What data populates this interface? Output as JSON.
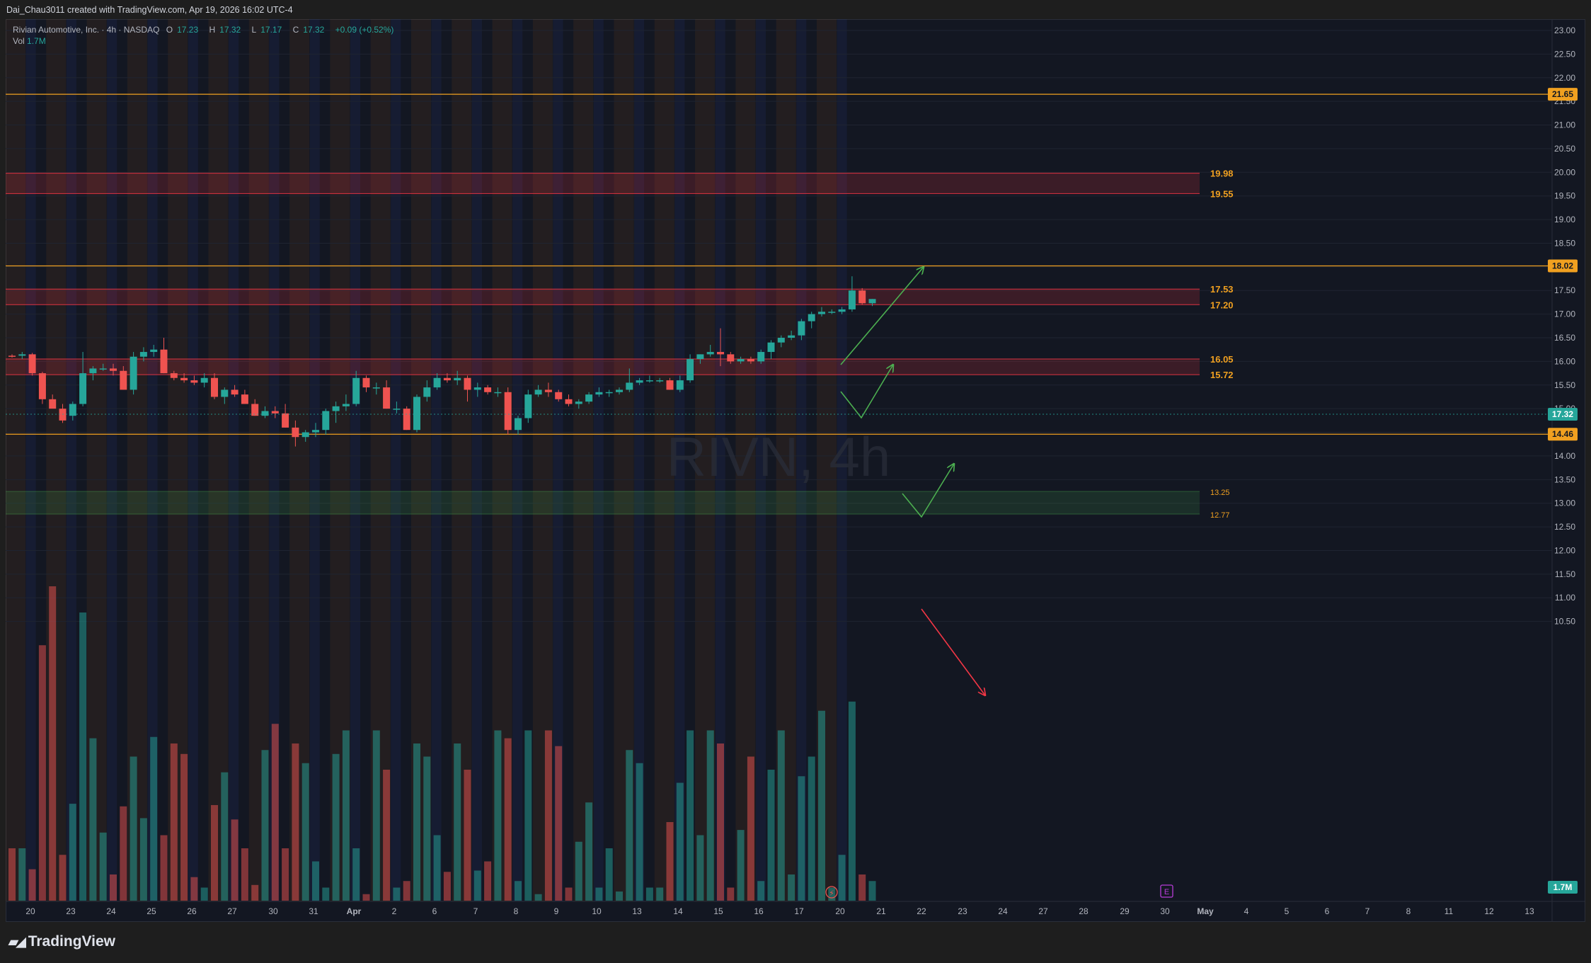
{
  "header": {
    "created_by": "Dai_Chau3011 created with TradingView.com, Apr 19, 2026 16:02 UTC-4"
  },
  "legend": {
    "symbol": "Rivian Automotive, Inc. · 4h · NASDAQ",
    "open_label": "O",
    "open": "17.23",
    "high_label": "H",
    "high": "17.32",
    "low_label": "L",
    "low": "17.17",
    "close_label": "C",
    "close": "17.32",
    "change": "+0.09 (+0.52%)",
    "vol_label": "Vol",
    "vol": "1.7M"
  },
  "watermark": "RIVN, 4h",
  "brand": {
    "name": "TradingView"
  },
  "colors": {
    "up": "#26a69a",
    "down": "#ef5350",
    "orange_line": "#f0a020",
    "red_zone": "#f23645",
    "green_zone": "#4caf50",
    "arrow_green": "#4caf50",
    "arrow_red": "#f23645"
  },
  "chart_data": {
    "type": "candlestick",
    "symbol": "RIVN",
    "interval": "4h",
    "y_axis": {
      "range": [
        10.2,
        23.2
      ],
      "ticks": [
        "23.00",
        "22.50",
        "22.00",
        "21.50",
        "21.00",
        "20.50",
        "20.00",
        "19.50",
        "19.00",
        "18.50",
        "18.00",
        "17.50",
        "17.00",
        "16.50",
        "16.00",
        "15.50",
        "15.00",
        "14.50",
        "14.00",
        "13.50",
        "13.00",
        "12.50",
        "12.00",
        "11.50",
        "11.00",
        "10.50"
      ]
    },
    "x_axis": {
      "labels": [
        "20",
        "23",
        "24",
        "25",
        "26",
        "27",
        "30",
        "31",
        "Apr",
        "2",
        "6",
        "7",
        "8",
        "9",
        "10",
        "13",
        "14",
        "15",
        "16",
        "17",
        "20",
        "21",
        "22",
        "23",
        "24",
        "27",
        "28",
        "29",
        "30",
        "May",
        "4",
        "5",
        "6",
        "7",
        "8",
        "11",
        "12",
        "13"
      ]
    },
    "candles": [
      [
        16.12,
        16.15,
        16.08,
        16.1
      ],
      [
        16.12,
        16.2,
        16.05,
        16.15
      ],
      [
        16.15,
        16.18,
        15.7,
        15.75
      ],
      [
        15.75,
        15.78,
        15.1,
        15.2
      ],
      [
        15.2,
        15.3,
        15.05,
        15.0
      ],
      [
        15.0,
        15.1,
        14.7,
        14.75
      ],
      [
        14.85,
        15.15,
        14.75,
        15.1
      ],
      [
        15.1,
        16.2,
        15.05,
        15.75
      ],
      [
        15.75,
        15.9,
        15.6,
        15.85
      ],
      [
        15.85,
        15.95,
        15.8,
        15.85
      ],
      [
        15.85,
        15.95,
        15.7,
        15.8
      ],
      [
        15.8,
        15.9,
        15.4,
        15.4
      ],
      [
        15.4,
        16.2,
        15.3,
        16.1
      ],
      [
        16.1,
        16.3,
        16.0,
        16.2
      ],
      [
        16.2,
        16.35,
        16.1,
        16.25
      ],
      [
        16.25,
        16.5,
        15.75,
        15.75
      ],
      [
        15.75,
        15.8,
        15.6,
        15.65
      ],
      [
        15.65,
        15.75,
        15.55,
        15.6
      ],
      [
        15.6,
        15.7,
        15.5,
        15.55
      ],
      [
        15.55,
        15.75,
        15.45,
        15.65
      ],
      [
        15.65,
        15.75,
        15.2,
        15.25
      ],
      [
        15.25,
        15.45,
        15.1,
        15.4
      ],
      [
        15.4,
        15.5,
        15.25,
        15.3
      ],
      [
        15.3,
        15.4,
        15.1,
        15.1
      ],
      [
        15.1,
        15.2,
        14.85,
        14.85
      ],
      [
        14.85,
        15.05,
        14.8,
        14.95
      ],
      [
        14.95,
        15.05,
        14.8,
        14.9
      ],
      [
        14.9,
        15.1,
        14.6,
        14.6
      ],
      [
        14.6,
        14.75,
        14.2,
        14.4
      ],
      [
        14.4,
        14.55,
        14.3,
        14.5
      ],
      [
        14.5,
        14.7,
        14.4,
        14.55
      ],
      [
        14.55,
        15.0,
        14.45,
        14.95
      ],
      [
        14.95,
        15.15,
        14.7,
        15.05
      ],
      [
        15.05,
        15.3,
        14.95,
        15.1
      ],
      [
        15.1,
        15.8,
        15.05,
        15.65
      ],
      [
        15.65,
        15.7,
        15.35,
        15.45
      ],
      [
        15.45,
        15.55,
        15.3,
        15.45
      ],
      [
        15.45,
        15.6,
        15.0,
        15.0
      ],
      [
        15.0,
        15.15,
        14.9,
        15.0
      ],
      [
        15.0,
        15.05,
        14.55,
        14.55
      ],
      [
        14.55,
        15.3,
        14.5,
        15.25
      ],
      [
        15.25,
        15.6,
        15.15,
        15.45
      ],
      [
        15.45,
        15.75,
        15.4,
        15.65
      ],
      [
        15.65,
        15.75,
        15.55,
        15.6
      ],
      [
        15.6,
        15.8,
        15.5,
        15.65
      ],
      [
        15.65,
        15.7,
        15.15,
        15.4
      ],
      [
        15.4,
        15.55,
        15.25,
        15.45
      ],
      [
        15.45,
        15.5,
        15.3,
        15.35
      ],
      [
        15.35,
        15.45,
        15.25,
        15.35
      ],
      [
        15.35,
        15.45,
        14.45,
        14.55
      ],
      [
        14.55,
        14.85,
        14.45,
        14.8
      ],
      [
        14.8,
        15.4,
        14.7,
        15.3
      ],
      [
        15.3,
        15.5,
        15.25,
        15.4
      ],
      [
        15.4,
        15.55,
        15.25,
        15.35
      ],
      [
        15.35,
        15.4,
        15.15,
        15.2
      ],
      [
        15.2,
        15.3,
        15.05,
        15.1
      ],
      [
        15.1,
        15.2,
        15.0,
        15.15
      ],
      [
        15.15,
        15.35,
        15.1,
        15.3
      ],
      [
        15.3,
        15.45,
        15.25,
        15.35
      ],
      [
        15.35,
        15.4,
        15.25,
        15.35
      ],
      [
        15.35,
        15.45,
        15.3,
        15.4
      ],
      [
        15.4,
        15.85,
        15.35,
        15.55
      ],
      [
        15.55,
        15.65,
        15.5,
        15.6
      ],
      [
        15.6,
        15.7,
        15.55,
        15.6
      ],
      [
        15.6,
        15.65,
        15.55,
        15.6
      ],
      [
        15.6,
        15.65,
        15.4,
        15.4
      ],
      [
        15.4,
        15.7,
        15.35,
        15.6
      ],
      [
        15.6,
        16.15,
        15.55,
        16.05
      ],
      [
        16.05,
        16.15,
        15.95,
        16.15
      ],
      [
        16.15,
        16.35,
        16.1,
        16.2
      ],
      [
        16.2,
        16.7,
        15.9,
        16.15
      ],
      [
        16.15,
        16.2,
        15.95,
        16.0
      ],
      [
        16.0,
        16.1,
        15.95,
        16.05
      ],
      [
        16.05,
        16.1,
        15.95,
        16.0
      ],
      [
        16.0,
        16.25,
        15.95,
        16.2
      ],
      [
        16.2,
        16.45,
        16.05,
        16.4
      ],
      [
        16.4,
        16.55,
        16.3,
        16.5
      ],
      [
        16.5,
        16.65,
        16.45,
        16.55
      ],
      [
        16.55,
        16.9,
        16.45,
        16.85
      ],
      [
        16.85,
        17.05,
        16.7,
        17.0
      ],
      [
        17.0,
        17.15,
        16.95,
        17.05
      ],
      [
        17.05,
        17.1,
        17.0,
        17.05
      ],
      [
        17.05,
        17.15,
        17.0,
        17.1
      ],
      [
        17.1,
        17.8,
        17.05,
        17.5
      ],
      [
        17.5,
        17.55,
        17.2,
        17.23
      ],
      [
        17.23,
        17.32,
        17.17,
        17.32
      ]
    ],
    "volume": [
      0.4,
      0.4,
      0.24,
      1.95,
      2.4,
      0.35,
      0.74,
      2.2,
      1.24,
      0.52,
      0.2,
      0.72,
      1.1,
      0.63,
      1.25,
      0.5,
      1.2,
      1.12,
      0.18,
      0.1,
      0.73,
      0.98,
      0.62,
      0.4,
      0.12,
      1.15,
      1.35,
      0.4,
      1.2,
      1.05,
      0.3,
      0.1,
      1.12,
      1.3,
      0.4,
      0.05,
      1.3,
      1.0,
      0.1,
      0.15,
      1.2,
      1.1,
      0.5,
      0.22,
      1.2,
      1.0,
      0.23,
      0.3,
      1.3,
      1.24,
      0.15,
      1.3,
      0.05,
      1.3,
      1.18,
      0.1,
      0.45,
      0.75,
      0.1,
      0.4,
      0.07,
      1.15,
      1.05,
      0.1,
      0.1,
      0.6,
      0.9,
      1.3,
      0.5,
      1.3,
      1.2,
      0.1,
      0.54,
      1.1,
      0.15,
      1.0,
      1.3,
      0.2,
      0.95,
      1.1,
      1.45,
      0.1,
      0.35,
      1.52,
      0.2,
      0.15
    ],
    "horizontal_lines": [
      {
        "price": 21.65,
        "label": "21.65"
      },
      {
        "price": 18.02,
        "label": "18.02"
      },
      {
        "price": 14.46,
        "label": "14.46"
      }
    ],
    "zones": [
      {
        "top": 19.98,
        "bottom": 19.55,
        "top_label": "19.98",
        "bottom_label": "19.55",
        "kind": "resistance"
      },
      {
        "top": 17.53,
        "bottom": 17.2,
        "top_label": "17.53",
        "bottom_label": "17.20",
        "kind": "resistance"
      },
      {
        "top": 16.05,
        "bottom": 15.72,
        "top_label": "16.05",
        "bottom_label": "15.72",
        "kind": "resistance"
      },
      {
        "top": 13.25,
        "bottom": 12.77,
        "top_label": "13.25",
        "bottom_label": "12.77",
        "kind": "support"
      }
    ],
    "last_price": "17.32",
    "volume_label": "1.7M"
  }
}
